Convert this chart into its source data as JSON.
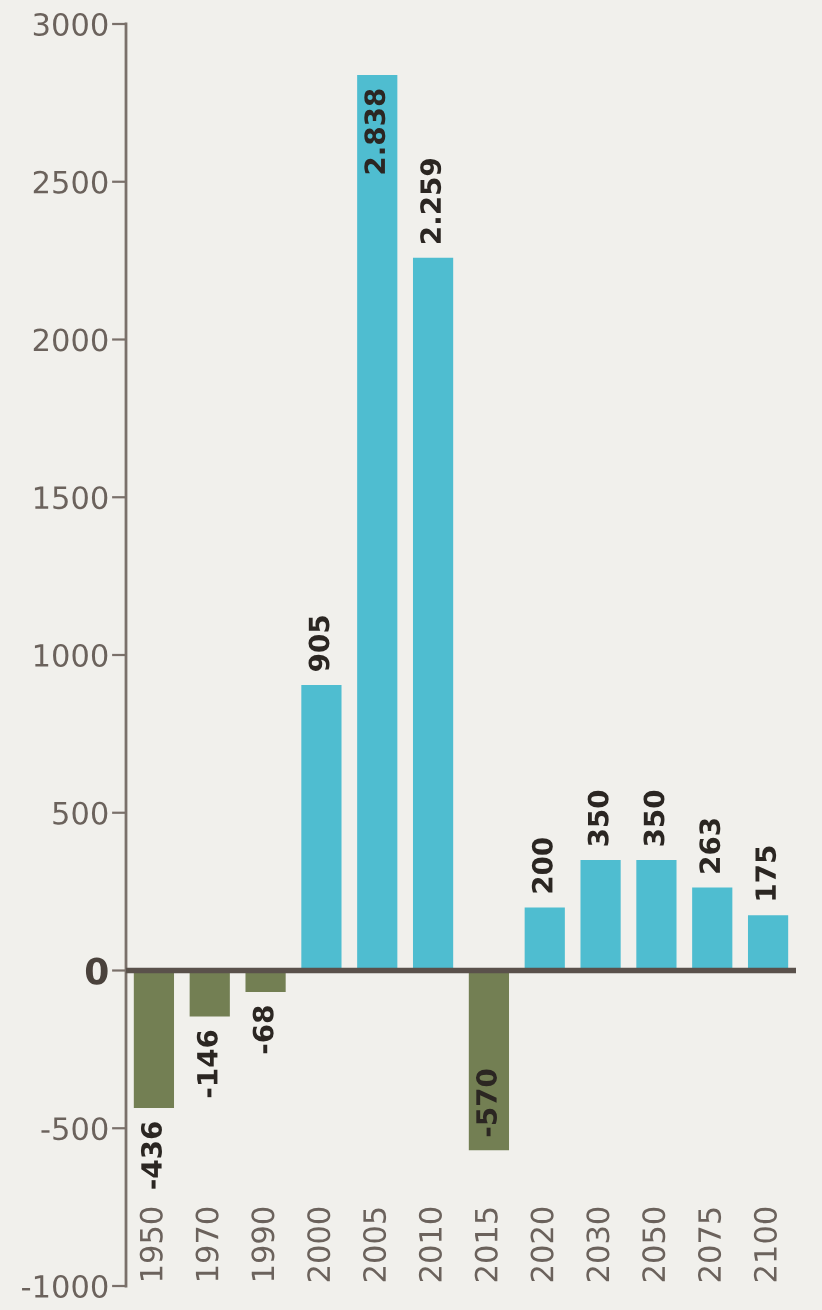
{
  "chart_data": {
    "type": "bar",
    "categories": [
      "1950",
      "1970",
      "1990",
      "2000",
      "2005",
      "2010",
      "2015",
      "2020",
      "2030",
      "2050",
      "2075",
      "2100"
    ],
    "values": [
      -436,
      -146,
      -68,
      905,
      2838,
      2259,
      -570,
      200,
      350,
      350,
      263,
      175
    ],
    "colors": [
      "#737f53",
      "#737f53",
      "#737f53",
      "#4fbdd0",
      "#4fbdd0",
      "#4fbdd0",
      "#737f53",
      "#4fbdd0",
      "#4fbdd0",
      "#4fbdd0",
      "#4fbdd0",
      "#4fbdd0"
    ],
    "value_labels": [
      "-436",
      "-146",
      "-68",
      "905",
      "2.838",
      "2.259",
      "-570",
      "200",
      "350",
      "350",
      "263",
      "175"
    ],
    "ylim": [
      -1000,
      3000
    ],
    "yticks": [
      -1000,
      -500,
      0,
      500,
      1000,
      1500,
      2000,
      2500,
      3000
    ],
    "ref_lines": [
      {
        "axis": "y",
        "value": 0,
        "color": "#5a514b"
      }
    ],
    "grid": false
  }
}
